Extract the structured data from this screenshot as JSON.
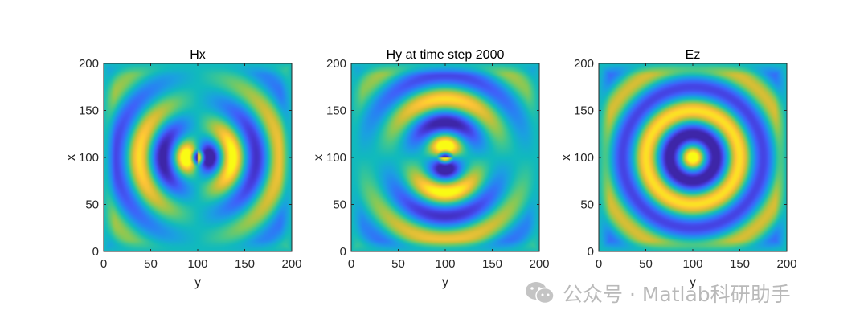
{
  "chart_data": [
    {
      "type": "heatmap",
      "title": "Hx",
      "xlabel": "y",
      "ylabel": "x",
      "xlim": [
        0,
        200
      ],
      "ylim": [
        0,
        200
      ],
      "xticks": [
        "0",
        "50",
        "100",
        "150",
        "200"
      ],
      "yticks": [
        "0",
        "50",
        "100",
        "150",
        "200"
      ],
      "field": "Hx"
    },
    {
      "type": "heatmap",
      "title": "Hy at time step 2000",
      "xlabel": "y",
      "ylabel": "x",
      "xlim": [
        0,
        200
      ],
      "ylim": [
        0,
        200
      ],
      "xticks": [
        "0",
        "50",
        "100",
        "150",
        "200"
      ],
      "yticks": [
        "0",
        "50",
        "100",
        "150",
        "200"
      ],
      "field": "Hy"
    },
    {
      "type": "heatmap",
      "title": "Ez",
      "xlabel": "y",
      "ylabel": "x",
      "xlim": [
        0,
        200
      ],
      "ylim": [
        0,
        200
      ],
      "xticks": [
        "0",
        "50",
        "100",
        "150",
        "200"
      ],
      "yticks": [
        "0",
        "50",
        "100",
        "150",
        "200"
      ],
      "field": "Ez"
    }
  ],
  "colormap": "parula",
  "watermark": {
    "text": "公众号 · Matlab科研助手",
    "icon": "wechat-icon"
  }
}
